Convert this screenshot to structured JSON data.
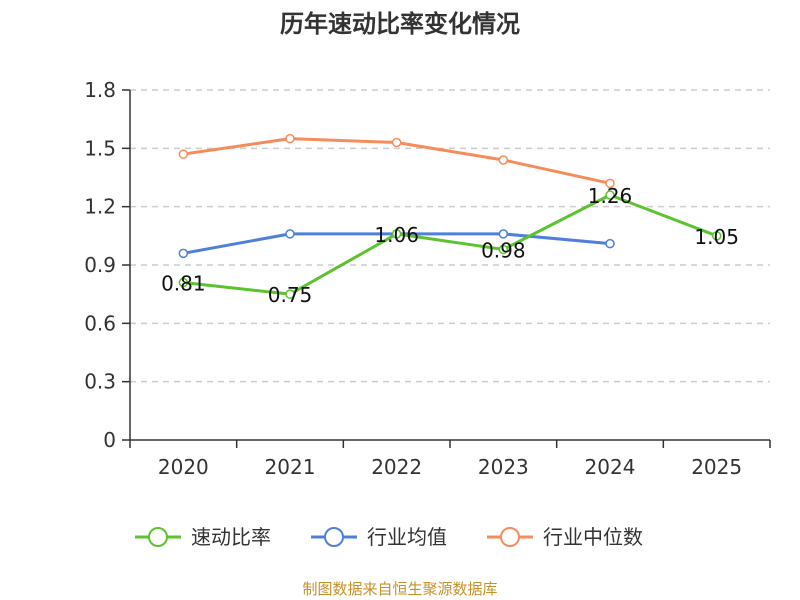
{
  "chart_data": {
    "type": "line",
    "title": "历年速动比率变化情况",
    "xlabel": "",
    "ylabel": "",
    "categories": [
      "2020",
      "2021",
      "2022",
      "2023",
      "2024",
      "2025"
    ],
    "ylim": [
      0,
      1.8
    ],
    "yticks": [
      "0",
      "0.3",
      "0.6",
      "0.9",
      "1.2",
      "1.5",
      "1.8"
    ],
    "grid": true,
    "legend_position": "bottom",
    "series": [
      {
        "name": "速动比率",
        "color": "#5cc22e",
        "values": [
          0.81,
          0.75,
          1.06,
          0.98,
          1.26,
          1.05
        ],
        "labels": [
          "0.81",
          "0.75",
          "1.06",
          "0.98",
          "1.26",
          "1.05"
        ],
        "show_labels": true
      },
      {
        "name": "行业均值",
        "color": "#4f7fdb",
        "values": [
          0.96,
          1.06,
          1.06,
          1.06,
          1.01,
          null
        ],
        "show_labels": false
      },
      {
        "name": "行业中位数",
        "color": "#f58c5c",
        "values": [
          1.47,
          1.55,
          1.53,
          1.44,
          1.32,
          null
        ],
        "show_labels": false
      }
    ]
  },
  "source": {
    "text": "制图数据来自恒生聚源数据库",
    "color": "#c8902a"
  },
  "colors": {
    "axis": "#333333",
    "grid": "#cccccc"
  }
}
